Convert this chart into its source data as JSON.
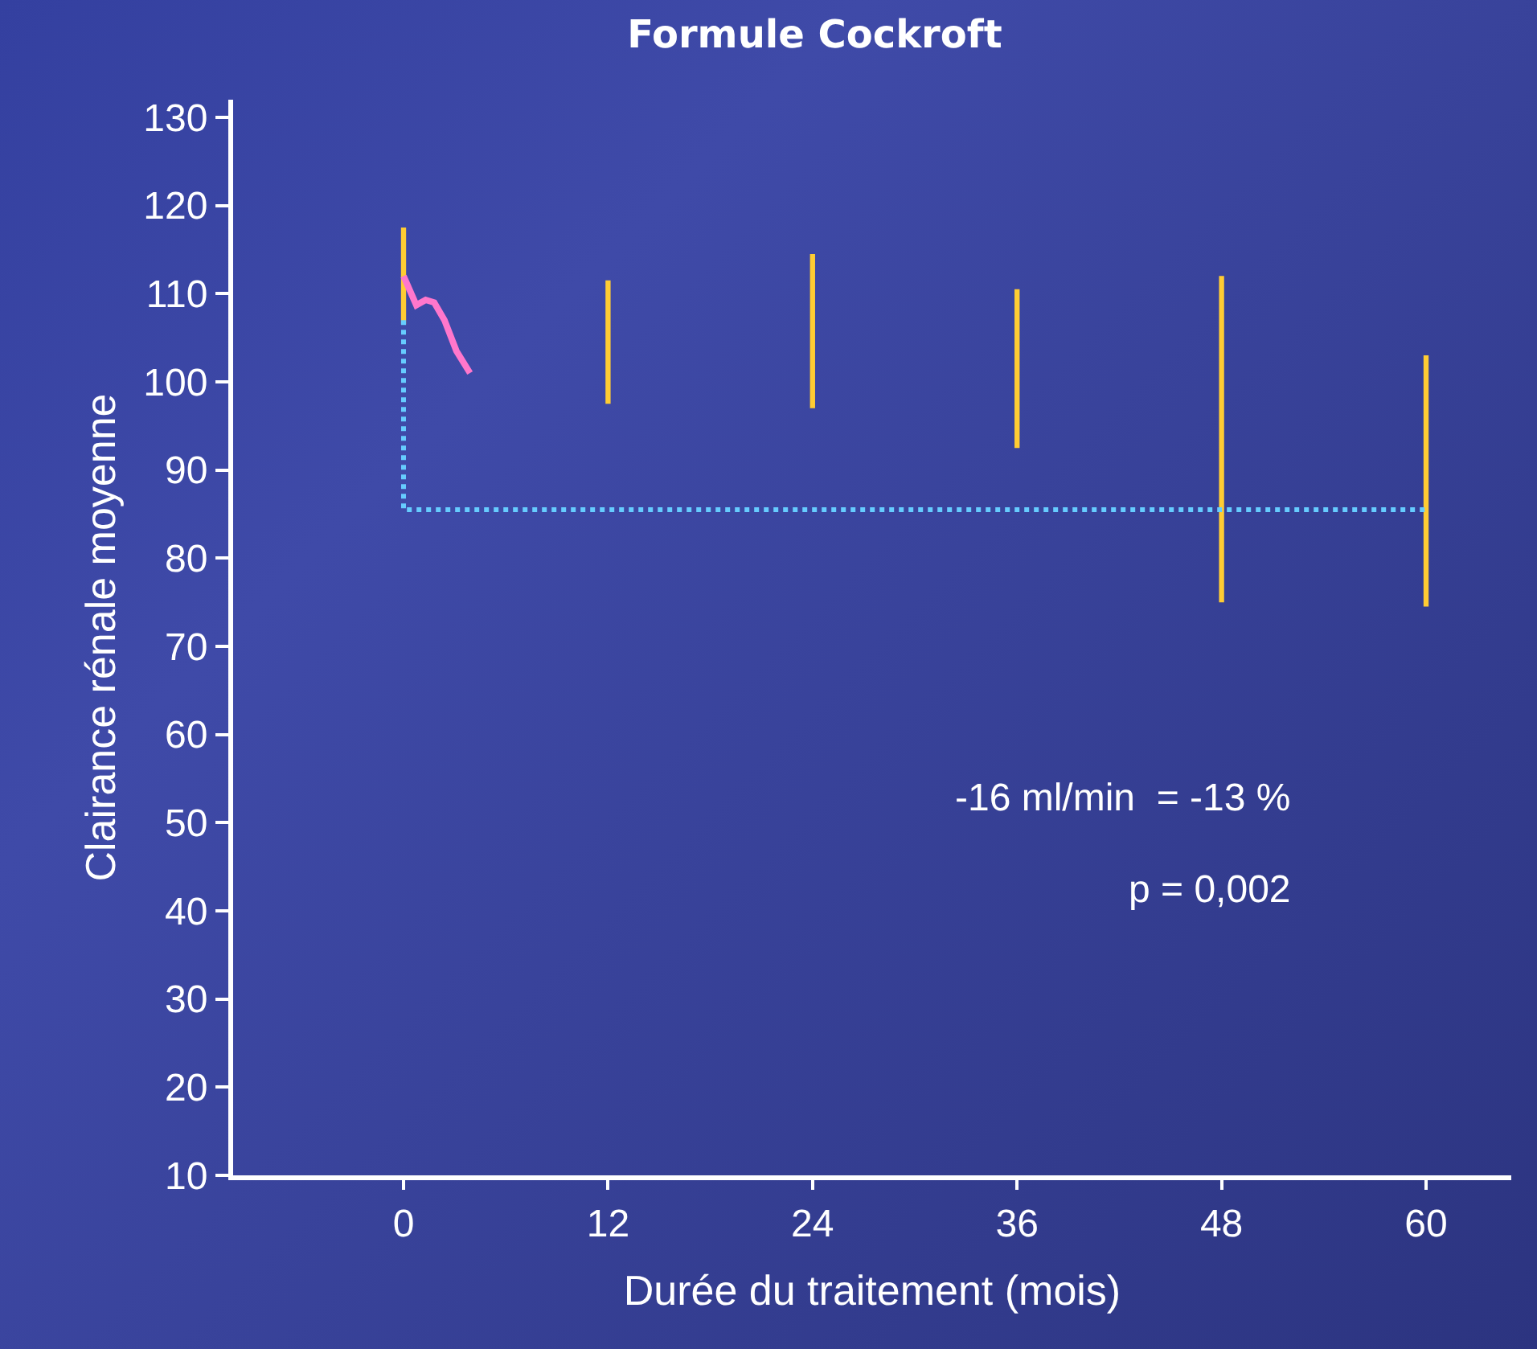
{
  "chart_data": {
    "type": "bar",
    "title": "Formule Cockroft",
    "xlabel": "Durée du traitement (mois)",
    "ylabel": "Clairance rénale moyenne",
    "x": [
      0,
      12,
      24,
      36,
      48,
      60
    ],
    "xlim": [
      -10,
      65
    ],
    "xticks": [
      0,
      12,
      24,
      36,
      48,
      60
    ],
    "ylim": [
      10,
      132
    ],
    "yticks": [
      10,
      20,
      30,
      40,
      50,
      60,
      70,
      80,
      90,
      100,
      110,
      120,
      130
    ],
    "grid": false,
    "legend": false,
    "marker": "none",
    "series": [
      {
        "color": "#ffcc33",
        "base": [
          106.5,
          97.5,
          97,
          92.5,
          75,
          74.5
        ],
        "values": [
          11,
          14,
          17.5,
          18,
          37,
          28.5
        ]
      },
      {
        "type": "line",
        "color": "#ff77cc",
        "line_style": "solid",
        "x": [
          0,
          0.75,
          1.3,
          1.8,
          2.4,
          3.1,
          3.9
        ],
        "values": [
          112,
          108.7,
          109.3,
          109,
          107,
          103.5,
          101
        ]
      },
      {
        "type": "line",
        "color": "#66ccff",
        "line_style": "dotted",
        "x": [
          0,
          0,
          60
        ],
        "values": [
          107,
          85.5,
          85.5
        ]
      }
    ],
    "annotations": [
      "-16 ml/min  = -13 %",
      "p = 0,002"
    ]
  }
}
